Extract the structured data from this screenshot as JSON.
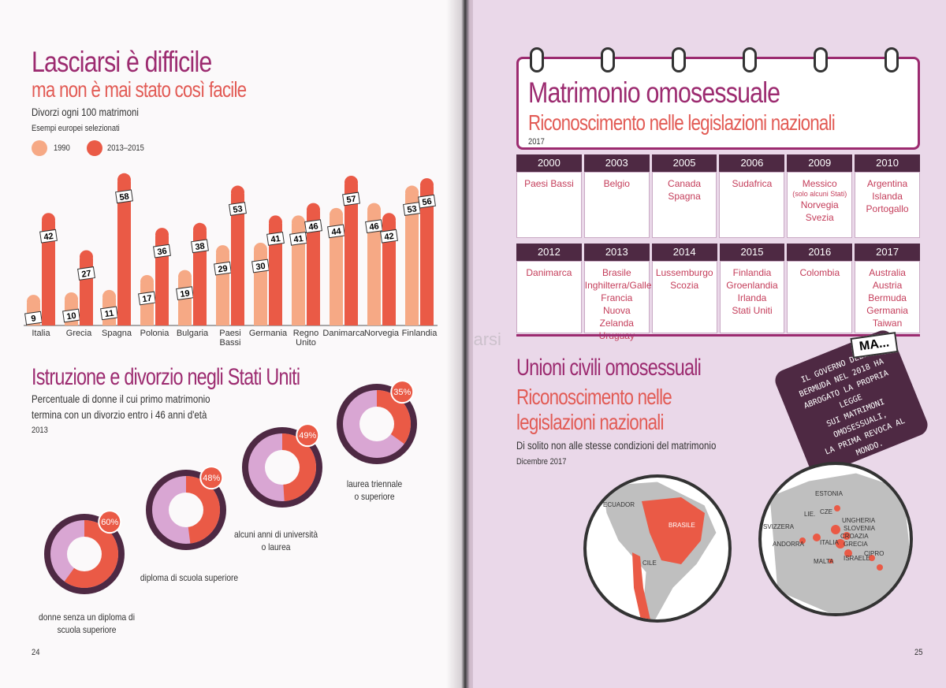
{
  "left": {
    "title": "Lasciarsi è difficile",
    "subtitle": "ma non è mai stato così facile",
    "chart_title": "Divorzi ogni 100 matrimoni",
    "chart_note": "Esempi europei selezionati",
    "legend": [
      "1990",
      "2013–2015"
    ],
    "section2_title": "Istruzione e divorzio negli Stati Uniti",
    "section2_text1": "Percentuale di donne il cui primo matrimonio",
    "section2_text2": "termina con un divorzio entro i 46 anni d'età",
    "section2_year": "2013",
    "page_number": "24"
  },
  "chart_data": [
    {
      "type": "bar",
      "title": "Divorzi ogni 100 matrimoni",
      "categories": [
        "Italia",
        "Grecia",
        "Spagna",
        "Polonia",
        "Bulgaria",
        "Paesi Bassi",
        "Germania",
        "Regno Unito",
        "Danimarca",
        "Norvegia",
        "Finlandia"
      ],
      "series": [
        {
          "name": "1990",
          "values": [
            9,
            10,
            11,
            17,
            19,
            29,
            30,
            41,
            44,
            46,
            53
          ]
        },
        {
          "name": "2013–2015",
          "values": [
            42,
            27,
            58,
            36,
            38,
            53,
            41,
            46,
            57,
            42,
            56
          ]
        }
      ],
      "ylim": [
        0,
        60
      ],
      "colors": {
        "1990": "#f6a985",
        "2013–2015": "#ea5a46"
      }
    },
    {
      "type": "pie",
      "title": "Istruzione e divorzio negli Stati Uniti",
      "categories": [
        "donne senza un diploma di scuola superiore",
        "diploma di scuola superiore",
        "alcuni anni di università o laurea",
        "laurea triennale o superiore"
      ],
      "values": [
        60,
        48,
        49,
        35
      ],
      "labels": [
        "60%",
        "48%",
        "49%",
        "35%"
      ]
    }
  ],
  "donut_labels": [
    [
      "donne senza un diploma di",
      "scuola superiore"
    ],
    [
      "diploma di scuola superiore"
    ],
    [
      "alcuni anni di università",
      "o laurea"
    ],
    [
      "laurea triennale",
      "o superiore"
    ]
  ],
  "right": {
    "title": "Matrimonio omosessuale",
    "subtitle": "Riconoscimento nelle legislazioni nazionali",
    "year_label": "2017",
    "rows": [
      [
        {
          "year": "2000",
          "countries": [
            "Paesi Bassi"
          ]
        },
        {
          "year": "2003",
          "countries": [
            "Belgio"
          ]
        },
        {
          "year": "2005",
          "countries": [
            "Canada",
            "Spagna"
          ]
        },
        {
          "year": "2006",
          "countries": [
            "Sudafrica"
          ]
        },
        {
          "year": "2009",
          "countries": [
            "Messico",
            "(solo alcuni Stati)",
            "Norvegia",
            "Svezia"
          ]
        },
        {
          "year": "2010",
          "countries": [
            "Argentina",
            "Islanda",
            "Portogallo"
          ]
        }
      ],
      [
        {
          "year": "2012",
          "countries": [
            "Danimarca"
          ]
        },
        {
          "year": "2013",
          "countries": [
            "Brasile",
            "Inghilterra/Galles",
            "Francia",
            "Nuova Zelanda",
            "Uruguay"
          ]
        },
        {
          "year": "2014",
          "countries": [
            "Lussemburgo",
            "Scozia"
          ]
        },
        {
          "year": "2015",
          "countries": [
            "Finlandia",
            "Groenlandia",
            "Irlanda",
            "Stati Uniti"
          ]
        },
        {
          "year": "2016",
          "countries": [
            "Colombia"
          ]
        },
        {
          "year": "2017",
          "countries": [
            "Australia",
            "Austria",
            "Bermuda",
            "Germania",
            "Taiwan"
          ]
        }
      ]
    ],
    "ma_label": "MA...",
    "bubble_lines": [
      "IL GOVERNO DELLE",
      "BERMUDA NEL 2018 HA",
      "ABROGATO LA PROPRIA LEGGE",
      "SUI MATRIMONI OMOSESSUALI,",
      "LA PRIMA REVOCA AL MONDO."
    ],
    "section2_title": "Unioni civili omosessuali",
    "section2_sub1": "Riconoscimento nelle",
    "section2_sub2": "legislazioni nazionali",
    "section2_text": "Di solito non alle stesse condizioni del matrimonio",
    "section2_date": "Dicembre 2017",
    "map_sa_labels": [
      "ECUADOR",
      "BRASILE",
      "CILE"
    ],
    "map_eu_labels": [
      "ESTONIA",
      "LIE.",
      "CZE",
      "UNGHERIA",
      "SLOVENIA",
      "SVIZZERA",
      "CROAZIA",
      "ANDORRA",
      "ITALIA",
      "GRECIA",
      "ISRAELE",
      "MALTA",
      "CIPRO"
    ],
    "page_number": "25",
    "watermark": "macrolibrarsi"
  }
}
